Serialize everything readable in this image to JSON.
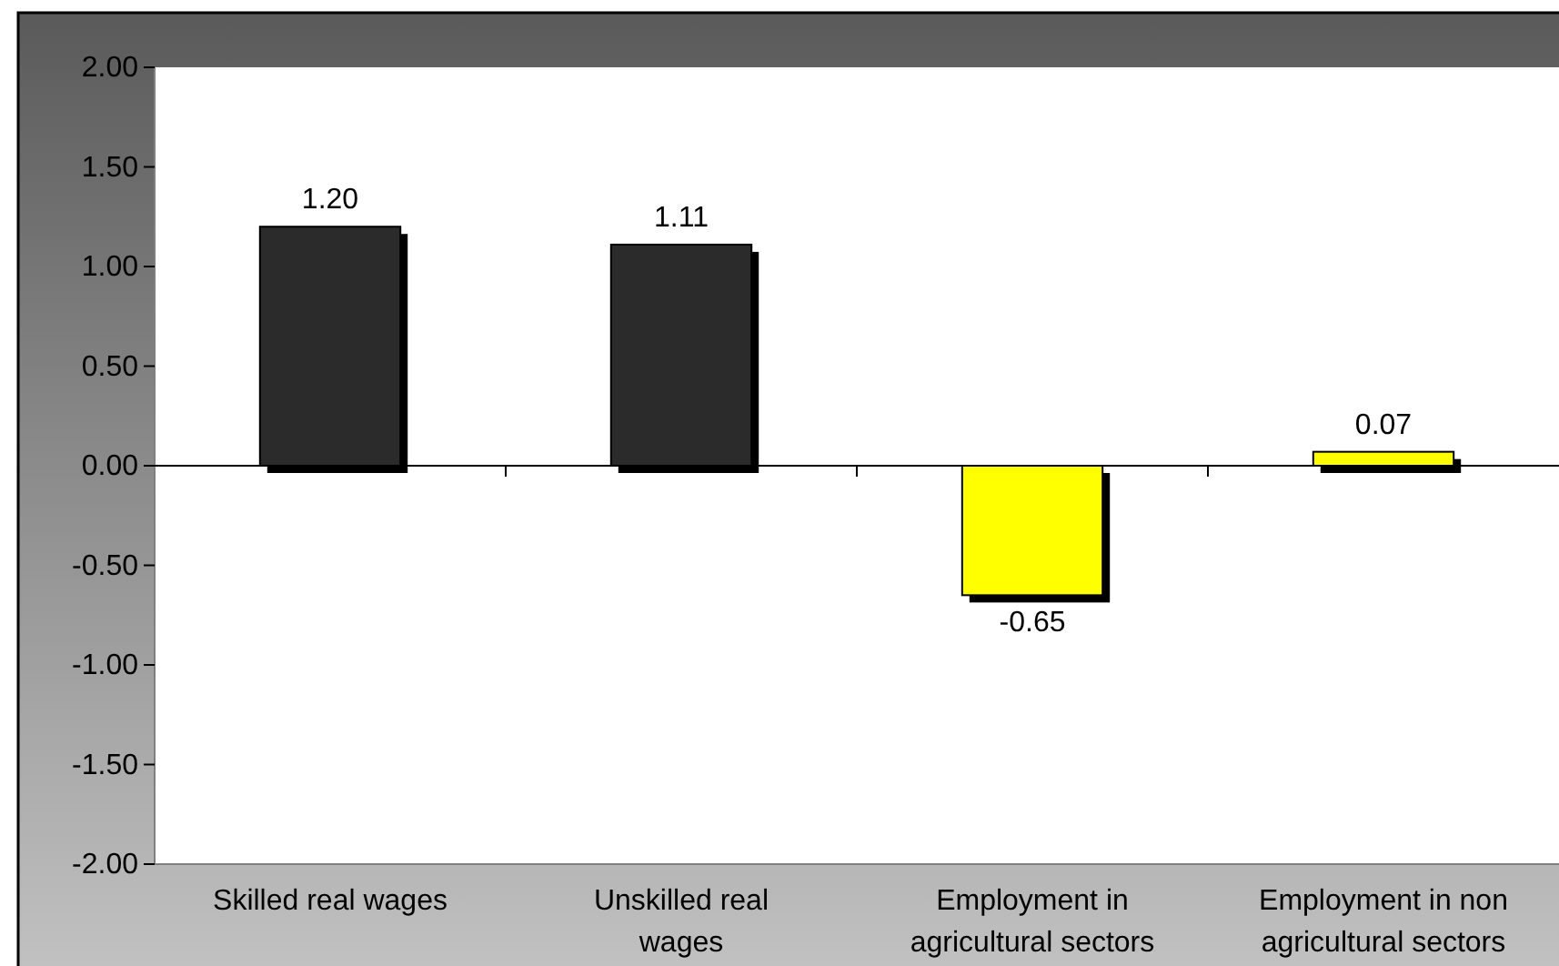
{
  "chart_data": {
    "type": "bar",
    "categories": [
      "Skilled real wages",
      "Unskilled real wages",
      "Employment in agricultural sectors",
      "Employment in non agricultural sectors"
    ],
    "values": [
      1.2,
      1.11,
      -0.65,
      0.07
    ],
    "colors": [
      "#2b2b2b",
      "#2b2b2b",
      "#ffff00",
      "#ffff00"
    ],
    "ylim": [
      -2,
      2
    ],
    "yticks": [
      {
        "value": -2,
        "label": "-2.00"
      },
      {
        "value": -1.5,
        "label": "-1.50"
      },
      {
        "value": -1,
        "label": "-1.00"
      },
      {
        "value": -0.5,
        "label": "-0.50"
      },
      {
        "value": 0,
        "label": "0.00"
      },
      {
        "value": 0.5,
        "label": "0.50"
      },
      {
        "value": 1,
        "label": "1.00"
      },
      {
        "value": 1.5,
        "label": "1.50"
      },
      {
        "value": 2,
        "label": "2.00"
      }
    ],
    "value_labels": [
      "1.20",
      "1.11",
      "-0.65",
      "0.07"
    ],
    "data_labels": false
  }
}
